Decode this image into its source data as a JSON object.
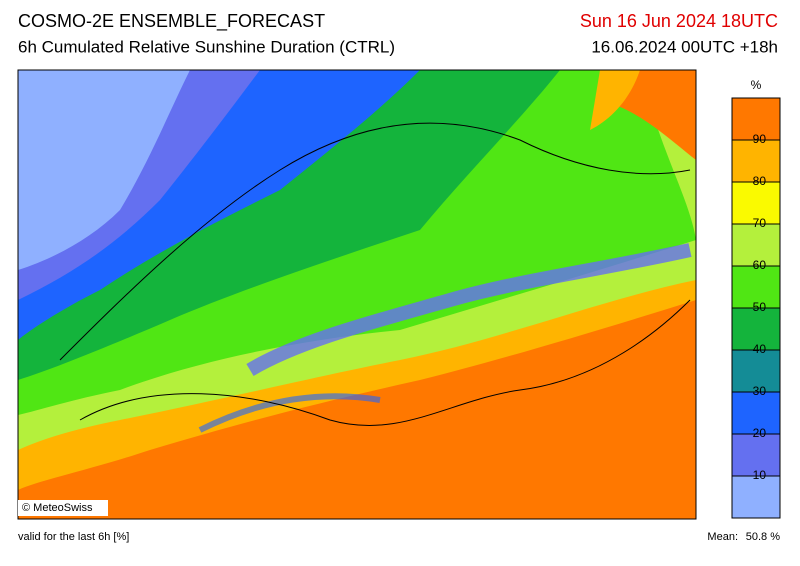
{
  "header": {
    "title": "COSMO-2E ENSEMBLE_FORECAST",
    "subtitle": "6h Cumulated Relative Sunshine Duration (CTRL)",
    "valid_time": "Sun 16 Jun 2024 18UTC",
    "run": "16.06.2024 00UTC +18h"
  },
  "map": {
    "copyright": "© MeteoSwiss"
  },
  "colorbar": {
    "unit": "%",
    "bounds": [
      0,
      10,
      20,
      30,
      40,
      50,
      60,
      70,
      80,
      90,
      100
    ],
    "colors": [
      "#8fb0ff",
      "#6470f0",
      "#1e64ff",
      "#148c96",
      "#14b43c",
      "#50e614",
      "#b4f03c",
      "#fafa00",
      "#ffb400",
      "#ff7800"
    ],
    "ticks": [
      10,
      20,
      30,
      40,
      50,
      60,
      70,
      80,
      90
    ]
  },
  "footer": {
    "note": "valid for the last 6h [%]",
    "mean_label": "Mean:",
    "mean_value": "50.8 %"
  }
}
